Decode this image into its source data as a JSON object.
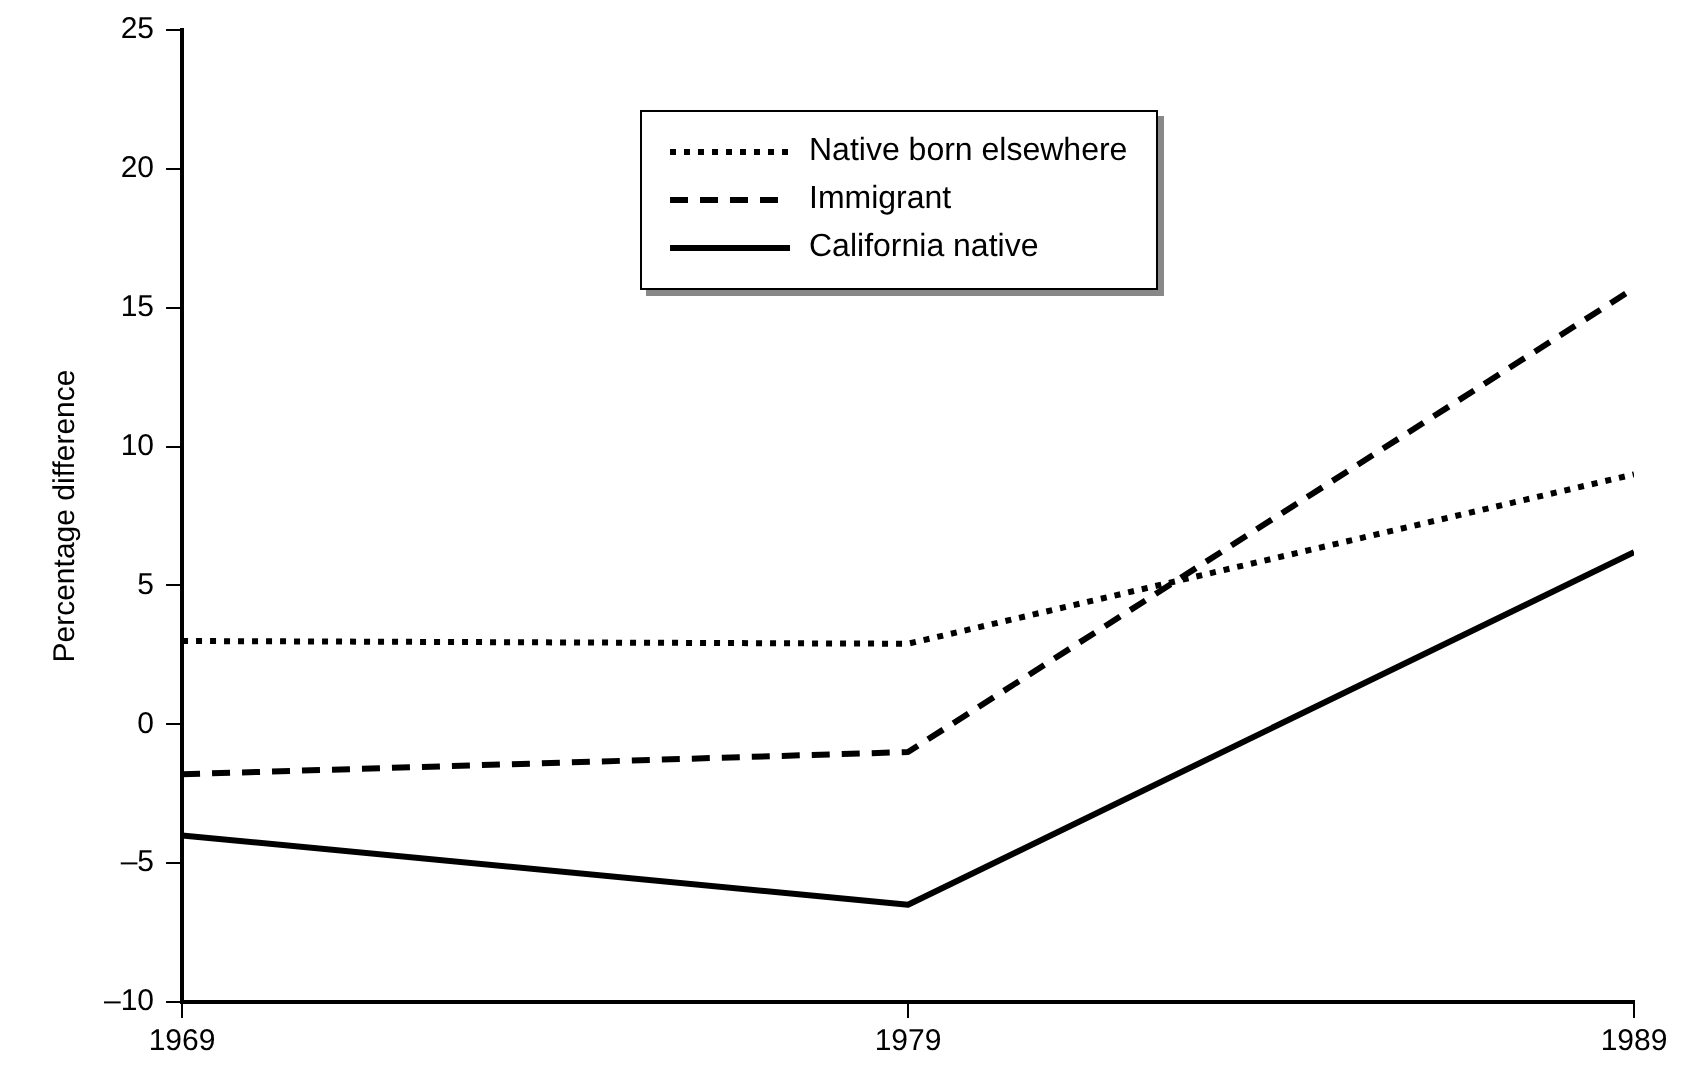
{
  "chart_data": {
    "type": "line",
    "ylabel": "Percentage difference",
    "x": [
      1969,
      1979,
      1989
    ],
    "xlim": [
      1969,
      1989
    ],
    "xticks": [
      1969,
      1979,
      1989
    ],
    "ylim": [
      -10,
      25
    ],
    "yticks": [
      {
        "value": -10,
        "label": "–10"
      },
      {
        "value": -5,
        "label": "–5"
      },
      0,
      5,
      10,
      15,
      20,
      25
    ],
    "grid": false,
    "legend": "top",
    "marker": "none",
    "series": [
      {
        "name": "Native born elsewhere",
        "color": "#000000",
        "line_style": "dotted",
        "values": [
          3.0,
          2.9,
          9.0
        ]
      },
      {
        "name": "Immigrant",
        "color": "#000000",
        "line_style": "dashed",
        "values": [
          -1.8,
          -1.0,
          15.7
        ]
      },
      {
        "name": "California native",
        "color": "#000000",
        "line_style": "solid",
        "values": [
          -4.0,
          -6.5,
          6.2
        ]
      }
    ]
  }
}
